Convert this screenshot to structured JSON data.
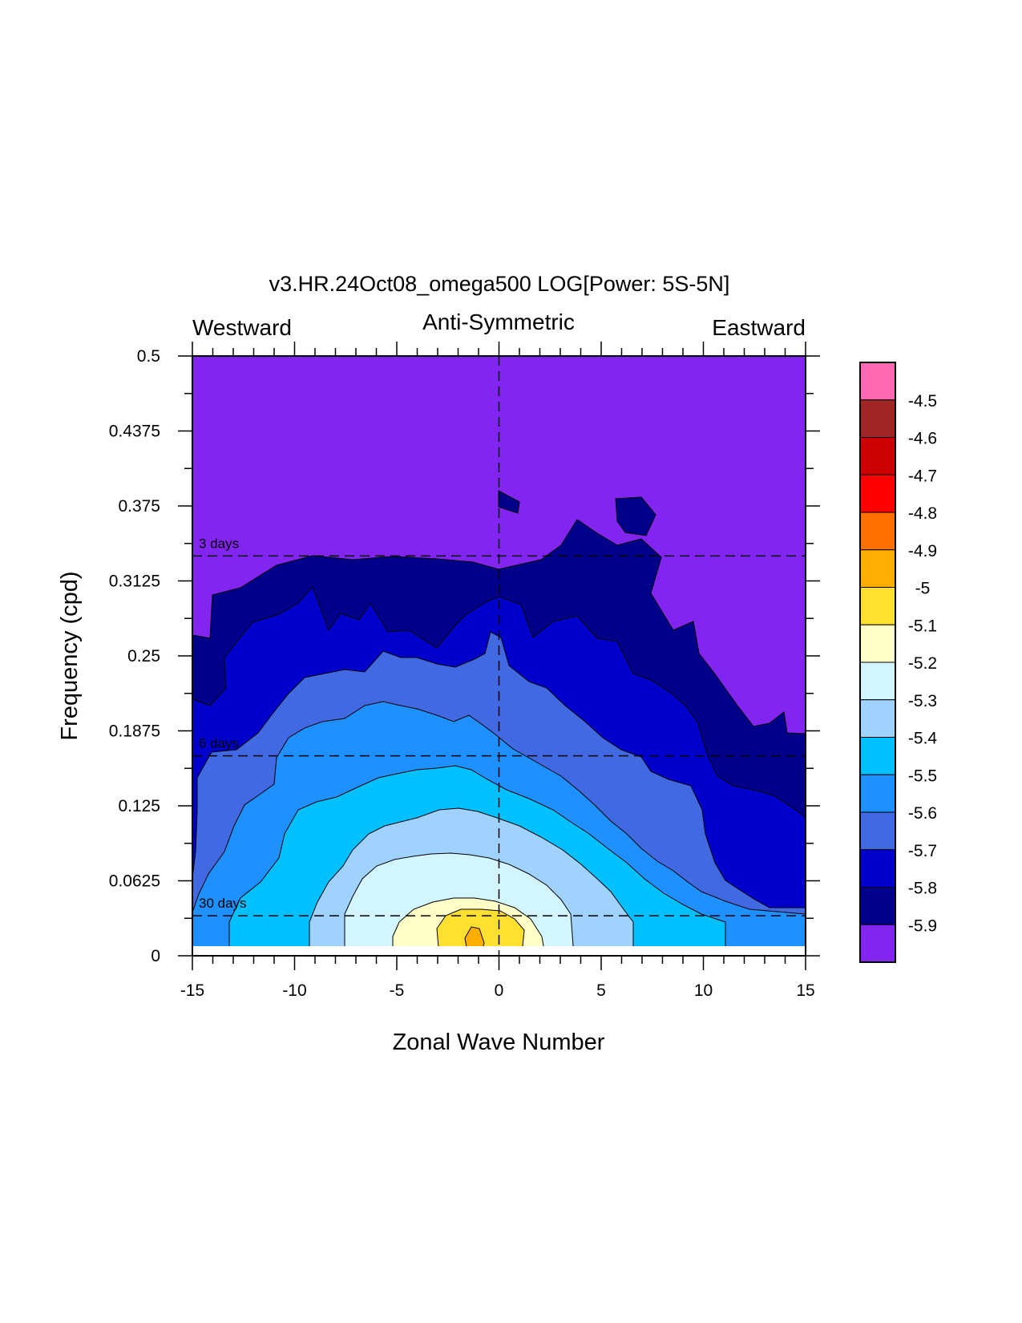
{
  "chart_data": {
    "type": "heatmap",
    "title": "v3.HR.24Oct08_omega500 LOG[Power: 5S-5N]",
    "left_label": "Westward",
    "center_label": "Anti-Symmetric",
    "right_label": "Eastward",
    "xlabel": "Zonal Wave Number",
    "ylabel": "Frequency (cpd)",
    "xlim": [
      -15,
      15
    ],
    "ylim": [
      0,
      0.5
    ],
    "x_ticks": [
      "-15",
      "-10",
      "-5",
      "0",
      "5",
      "10",
      "15"
    ],
    "x_tick_values": [
      -15,
      -10,
      -5,
      0,
      5,
      10,
      15
    ],
    "y_ticks": [
      "0",
      "0.0625",
      "0.125",
      "0.1875",
      "0.25",
      "0.3125",
      "0.375",
      "0.4375",
      "0.5"
    ],
    "y_tick_values": [
      0,
      0.0625,
      0.125,
      0.1875,
      0.25,
      0.3125,
      0.375,
      0.4375,
      0.5
    ],
    "period_lines": [
      {
        "label": "3 days",
        "frequency": 0.3333
      },
      {
        "label": "6 days",
        "frequency": 0.1667
      },
      {
        "label": "30 days",
        "frequency": 0.0333
      }
    ],
    "colorbar": {
      "levels": [
        "-4.5",
        "-4.6",
        "-4.7",
        "-4.8",
        "-4.9",
        "-5",
        "-5.1",
        "-5.2",
        "-5.3",
        "-5.4",
        "-5.5",
        "-5.6",
        "-5.7",
        "-5.8",
        "-5.9"
      ],
      "colors": [
        "#ff69b4",
        "#a02525",
        "#cc0000",
        "#ff0000",
        "#ff7000",
        "#ffad00",
        "#ffe030",
        "#ffffc8",
        "#d2f5ff",
        "#a0d2ff",
        "#00c0ff",
        "#1e90ff",
        "#4169e1",
        "#0000cd",
        "#00008b",
        "#8225f0"
      ]
    },
    "contour_levels": [
      -5.9,
      -5.8,
      -5.7,
      -5.6,
      -5.5,
      -5.4,
      -5.3,
      -5.2,
      -5.1,
      -5.0,
      -4.9
    ],
    "field_description_points": [
      {
        "x": -1,
        "y": 0.03,
        "value": -4.95
      },
      {
        "x": 0,
        "y": 0.04,
        "value": -5.05
      },
      {
        "x": -15,
        "y": 0.5,
        "value": -6.0
      },
      {
        "x": 15,
        "y": 0.5,
        "value": -6.0
      }
    ]
  }
}
